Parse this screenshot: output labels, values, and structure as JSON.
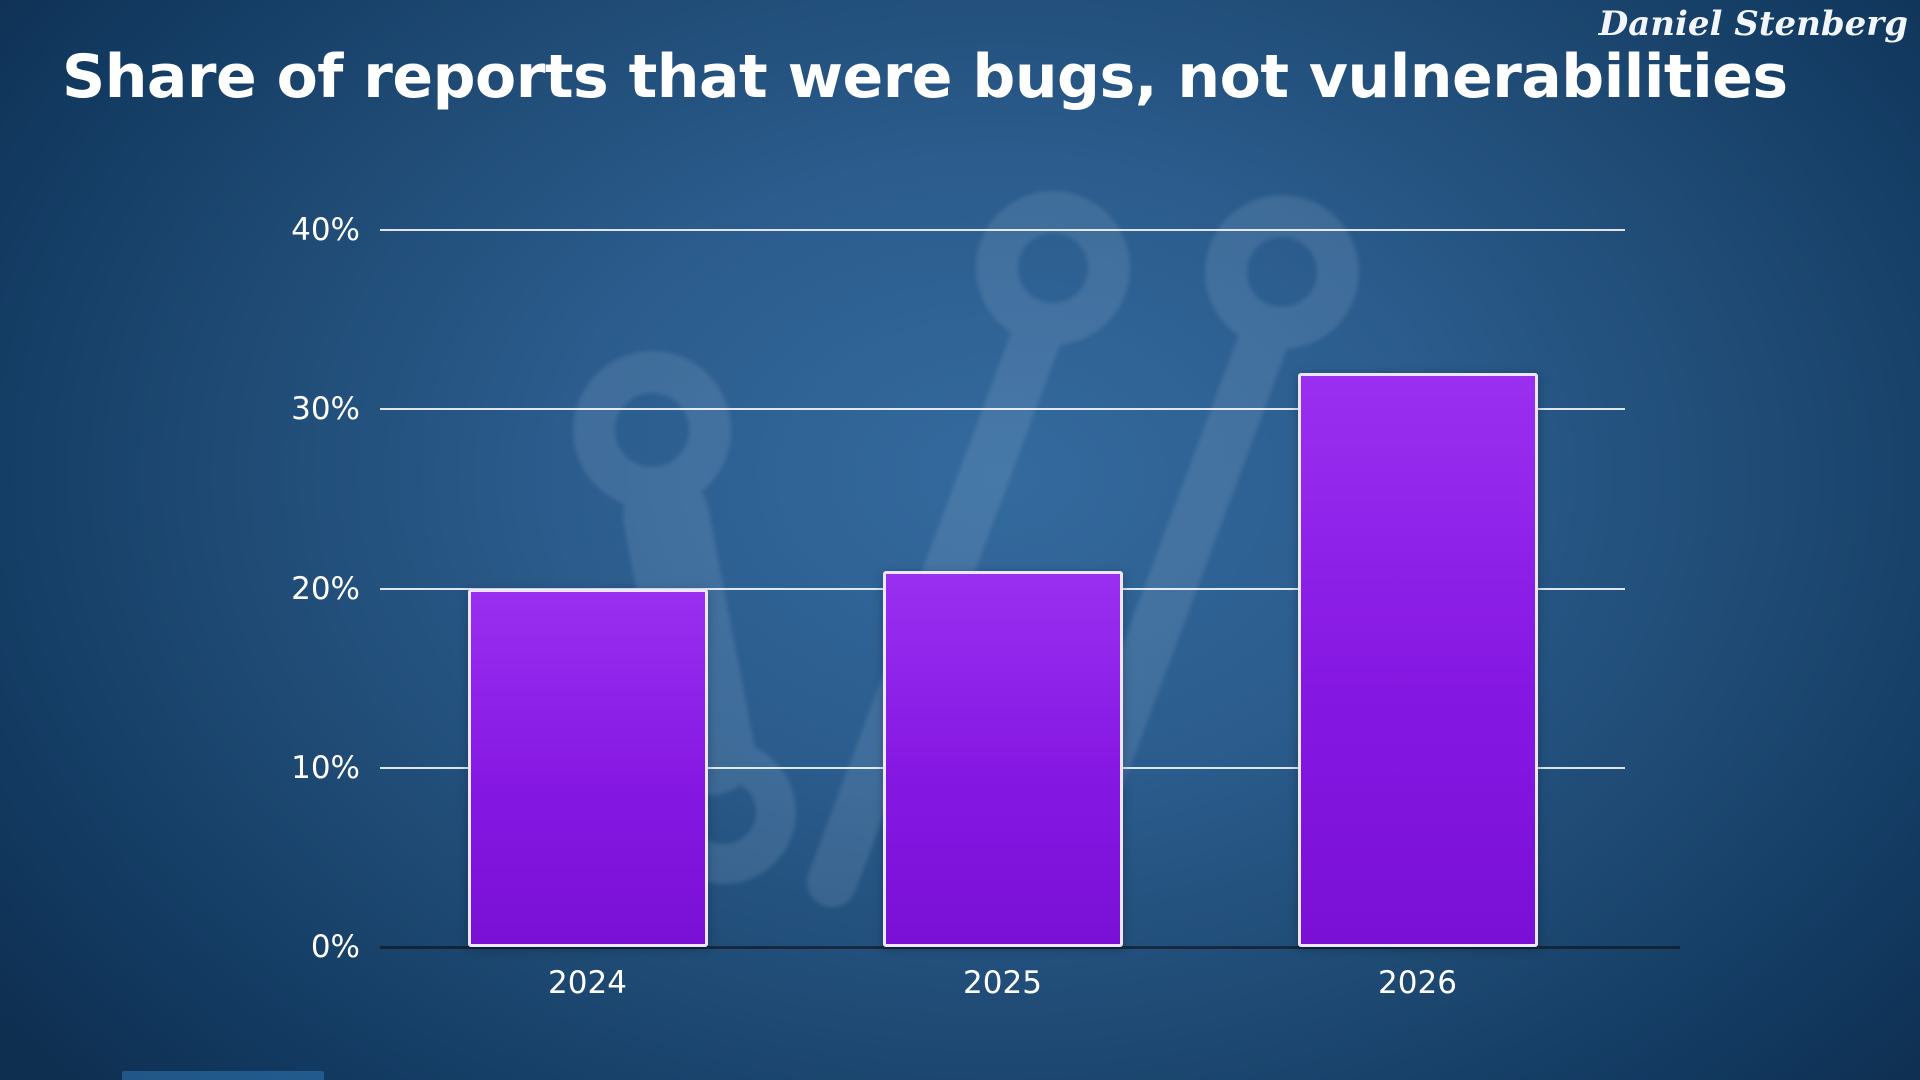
{
  "slide": {
    "title": "Share of reports that were bugs, not vulnerabilities",
    "author": "Daniel Stenberg"
  },
  "chart_data": {
    "type": "bar",
    "title": "Share of reports that were bugs, not vulnerabilities",
    "categories": [
      "2024",
      "2025",
      "2026"
    ],
    "values": [
      20,
      21,
      32
    ],
    "xlabel": "",
    "ylabel": "",
    "ylim": [
      0,
      40
    ],
    "yticks": [
      0,
      10,
      20,
      30,
      40
    ],
    "ytick_labels": [
      "0%",
      "10%",
      "20%",
      "30%",
      "40%"
    ],
    "grid": true,
    "legend": false
  },
  "colors": {
    "background_center": "#346a9e",
    "background_edge": "#0f2f51",
    "bar_fill_top": "#9a2ff0",
    "bar_fill_mid": "#8517e2",
    "bar_fill_bottom": "#7a10d6",
    "bar_border": "#ece7f8",
    "gridline": "#ffffff",
    "axis_line": "#14161c",
    "text": "#ffffff"
  },
  "icons": {
    "watermark": "git-branch-watermark-icon"
  }
}
